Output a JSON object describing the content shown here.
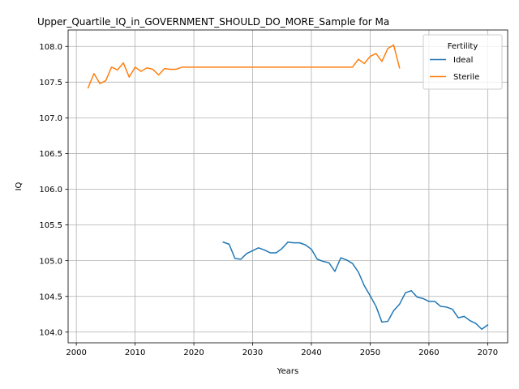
{
  "chart_data": {
    "type": "line",
    "title": "Upper_Quartile_IQ_in_GOVERNMENT_SHOULD_DO_MORE_Sample for Ma",
    "xlabel": "Years",
    "ylabel": "IQ",
    "xlim": [
      1998.6,
      2073.4
    ],
    "ylim": [
      103.85,
      108.23
    ],
    "xticks": [
      2000,
      2010,
      2020,
      2030,
      2040,
      2050,
      2060,
      2070
    ],
    "yticks": [
      104.0,
      104.5,
      105.0,
      105.5,
      106.0,
      106.5,
      107.0,
      107.5,
      108.0
    ],
    "xtick_labels": [
      "2000",
      "2010",
      "2020",
      "2030",
      "2040",
      "2050",
      "2060",
      "2070"
    ],
    "ytick_labels": [
      "104.0",
      "104.5",
      "105.0",
      "105.5",
      "106.0",
      "106.5",
      "107.0",
      "107.5",
      "108.0"
    ],
    "grid": true,
    "legend": {
      "title": "Fertility",
      "placement": "upper right"
    },
    "series": [
      {
        "name": "Ideal",
        "color": "#1f77b4",
        "x": [
          2025,
          2026,
          2027,
          2028,
          2029,
          2030,
          2031,
          2032,
          2033,
          2034,
          2035,
          2036,
          2037,
          2038,
          2039,
          2040,
          2041,
          2042,
          2043,
          2044,
          2045,
          2046,
          2047,
          2048,
          2049,
          2050,
          2051,
          2052,
          2053,
          2054,
          2055,
          2056,
          2057,
          2058,
          2059,
          2060,
          2061,
          2062,
          2063,
          2064,
          2065,
          2066,
          2067,
          2068,
          2069,
          2070
        ],
        "y": [
          105.26,
          105.23,
          105.03,
          105.02,
          105.1,
          105.14,
          105.18,
          105.15,
          105.11,
          105.11,
          105.17,
          105.26,
          105.25,
          105.25,
          105.22,
          105.16,
          105.02,
          104.99,
          104.97,
          104.85,
          105.04,
          105.01,
          104.96,
          104.84,
          104.65,
          104.51,
          104.36,
          104.14,
          104.15,
          104.3,
          104.39,
          104.55,
          104.58,
          104.49,
          104.47,
          104.43,
          104.43,
          104.36,
          104.35,
          104.32,
          104.2,
          104.22,
          104.16,
          104.12,
          104.04,
          104.1
        ]
      },
      {
        "name": "Sterile",
        "color": "#ff7f0e",
        "x": [
          2002,
          2003,
          2004,
          2005,
          2006,
          2007,
          2008,
          2009,
          2010,
          2011,
          2012,
          2013,
          2014,
          2015,
          2016,
          2017,
          2018,
          2019,
          2020,
          2021,
          2022,
          2023,
          2024,
          2025,
          2026,
          2027,
          2028,
          2029,
          2030,
          2031,
          2032,
          2033,
          2034,
          2035,
          2036,
          2037,
          2038,
          2039,
          2040,
          2041,
          2042,
          2043,
          2044,
          2045,
          2046,
          2047,
          2048,
          2049,
          2050,
          2051,
          2052,
          2053,
          2054,
          2055
        ],
        "y": [
          107.42,
          107.62,
          107.48,
          107.52,
          107.71,
          107.67,
          107.77,
          107.57,
          107.71,
          107.65,
          107.7,
          107.68,
          107.6,
          107.69,
          107.68,
          107.68,
          107.71,
          107.71,
          107.71,
          107.71,
          107.71,
          107.71,
          107.71,
          107.71,
          107.71,
          107.71,
          107.71,
          107.71,
          107.71,
          107.71,
          107.71,
          107.71,
          107.71,
          107.71,
          107.71,
          107.71,
          107.71,
          107.71,
          107.71,
          107.71,
          107.71,
          107.71,
          107.71,
          107.71,
          107.71,
          107.71,
          107.82,
          107.76,
          107.86,
          107.9,
          107.79,
          107.97,
          108.02,
          107.7
        ]
      }
    ]
  }
}
